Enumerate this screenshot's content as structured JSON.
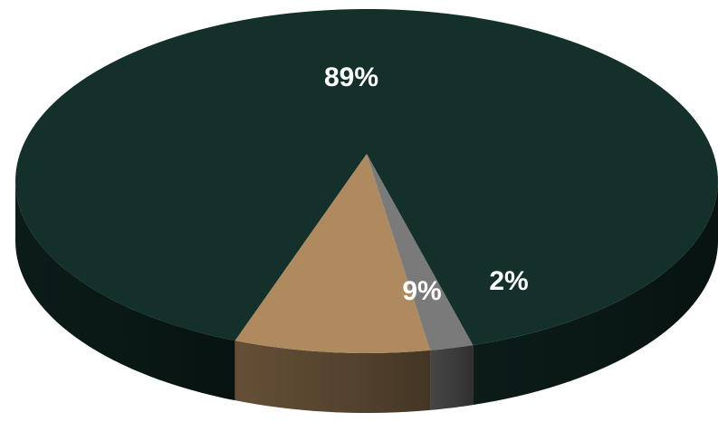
{
  "chart_data": {
    "type": "pie",
    "style": "3d",
    "slices": [
      {
        "label": "89%",
        "value": 89,
        "color": "#14302b"
      },
      {
        "label": "9%",
        "value": 9,
        "color": "#b08a5f"
      },
      {
        "label": "2%",
        "value": 2,
        "color": "#7a7a7a"
      }
    ],
    "legend": "none",
    "title": ""
  }
}
